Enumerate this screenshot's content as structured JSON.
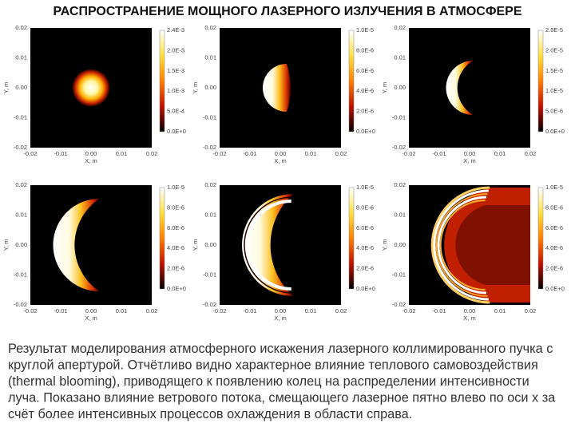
{
  "header": {
    "title": "РАСПРОСТРАНЕНИЕ МОЩНОГО ЛАЗЕРНОГО ИЗЛУЧЕНИЯ В АТМОСФЕРЕ"
  },
  "axes": {
    "xlabel": "X, m",
    "ylabel": "Y, m",
    "yticks": [
      "0.02",
      "0.01",
      "0.00",
      "-0.01",
      "-0.02"
    ],
    "xticks": [
      "-0.02",
      "-0.01",
      "0.00",
      "0.01",
      "0.02"
    ]
  },
  "panels": [
    {
      "colorbar": [
        "2.4E-3",
        "2.0E-3",
        "1.5E-3",
        "1.0E-3",
        "5.0E-4",
        "0.0E+0"
      ]
    },
    {
      "colorbar": [
        "1.0E-5",
        "8.0E-6",
        "6.0E-6",
        "4.0E-6",
        "2.0E-6",
        "0.0E+0"
      ]
    },
    {
      "colorbar": [
        "2.5E-5",
        "2.0E-5",
        "1.5E-5",
        "1.0E-5",
        "5.0E-6",
        "0.0E+0"
      ]
    },
    {
      "colorbar": [
        "1.0E-5",
        "8.0E-6",
        "6.0E-6",
        "4.0E-6",
        "2.0E-6",
        "0.0E+0"
      ]
    },
    {
      "colorbar": [
        "1.0E-5",
        "8.0E-6",
        "6.0E-6",
        "4.0E-6",
        "2.0E-6",
        "0.0E+0"
      ]
    },
    {
      "colorbar": [
        "1.0E-5",
        "8.0E-6",
        "6.0E-6",
        "4.0E-6",
        "2.0E-6",
        "0.0E+0"
      ]
    }
  ],
  "caption": [
    "Результат моделирования атмосферного искажения лазерного коллимированного пучка с",
    "круглой апертурой. Отчётливо видно характерное влияние теплового самовоздействия",
    "(thermal blooming), приводящего к появлению колец на распределении интенсивности",
    "луча. Показано влияние ветрового потока, смещающего лазерное пятно влево по оси х за",
    "счёт более интенсивных процессов охлаждения в области справа."
  ]
}
